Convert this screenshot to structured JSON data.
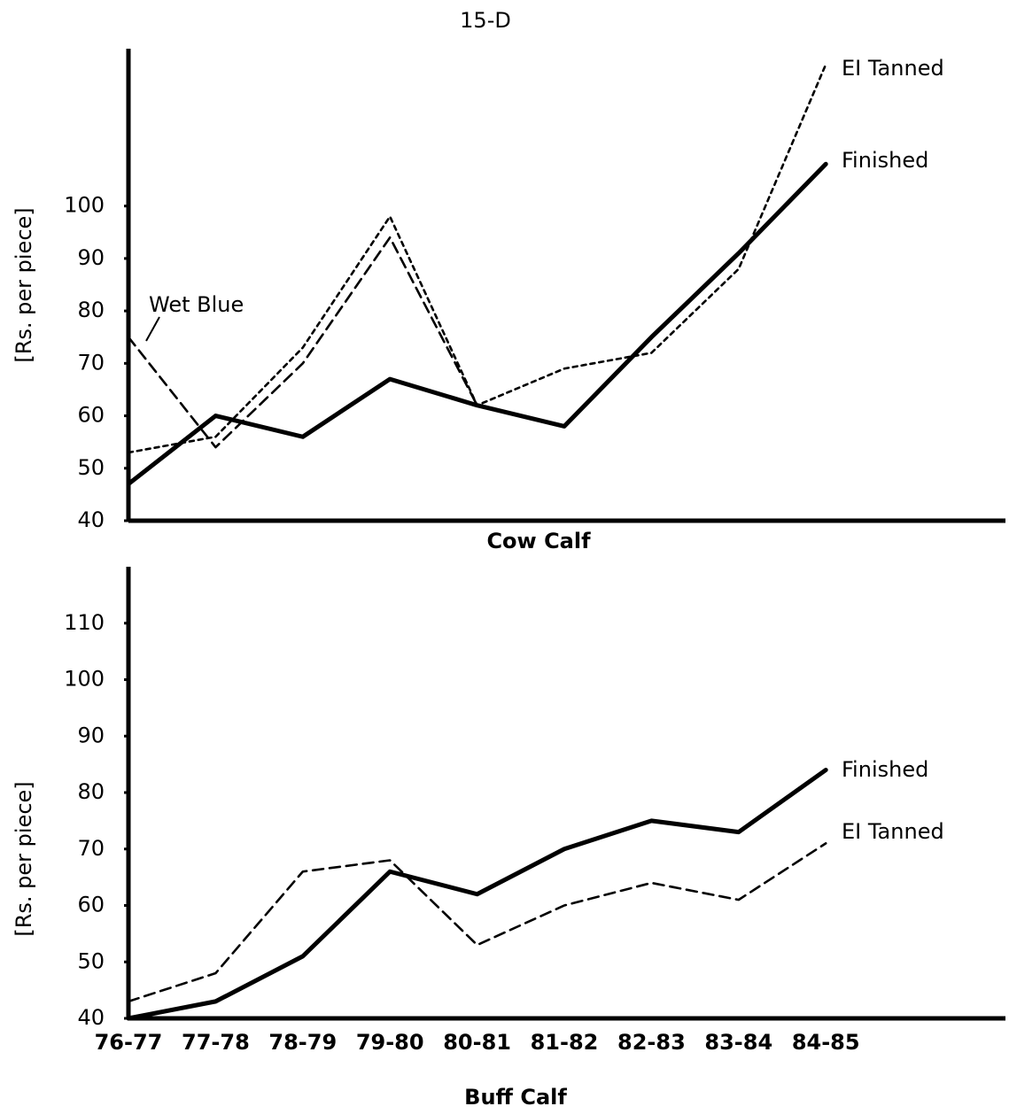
{
  "title": "15-D",
  "chart_data": [
    {
      "type": "line",
      "title": "Cow Calf",
      "ylabel": "[Rs. per piece]",
      "ylim": [
        40,
        130
      ],
      "yticks": [
        40,
        50,
        60,
        70,
        80,
        90,
        100
      ],
      "series": [
        {
          "name": "EI Tanned",
          "color": "#000000",
          "line_style": "dotted",
          "values": [
            53,
            56,
            73,
            98,
            62,
            69,
            72,
            88,
            127
          ]
        },
        {
          "name": "Finished",
          "color": "#000000",
          "line_style": "solid",
          "values": [
            47,
            60,
            56,
            67,
            62,
            58,
            75,
            91,
            108
          ]
        },
        {
          "name": "Wet Blue",
          "color": "#000000",
          "line_style": "dashed",
          "values": [
            75,
            54,
            70,
            94,
            62,
            null,
            null,
            null,
            null
          ]
        }
      ]
    },
    {
      "type": "line",
      "title": "Buff Calf",
      "ylabel": "[Rs. per piece]",
      "categories": [
        "76-77",
        "77-78",
        "78-79",
        "79-80",
        "80-81",
        "81-82",
        "82-83",
        "83-84",
        "84-85"
      ],
      "ylim": [
        40,
        120
      ],
      "yticks": [
        40,
        50,
        60,
        70,
        80,
        90,
        100,
        110
      ],
      "series": [
        {
          "name": "Finished",
          "color": "#000000",
          "line_style": "solid",
          "values": [
            40,
            43,
            51,
            66,
            62,
            70,
            75,
            73,
            84
          ]
        },
        {
          "name": "EI Tanned",
          "color": "#000000",
          "line_style": "dashed",
          "values": [
            43,
            48,
            66,
            68,
            53,
            60,
            64,
            61,
            71
          ]
        }
      ]
    }
  ]
}
